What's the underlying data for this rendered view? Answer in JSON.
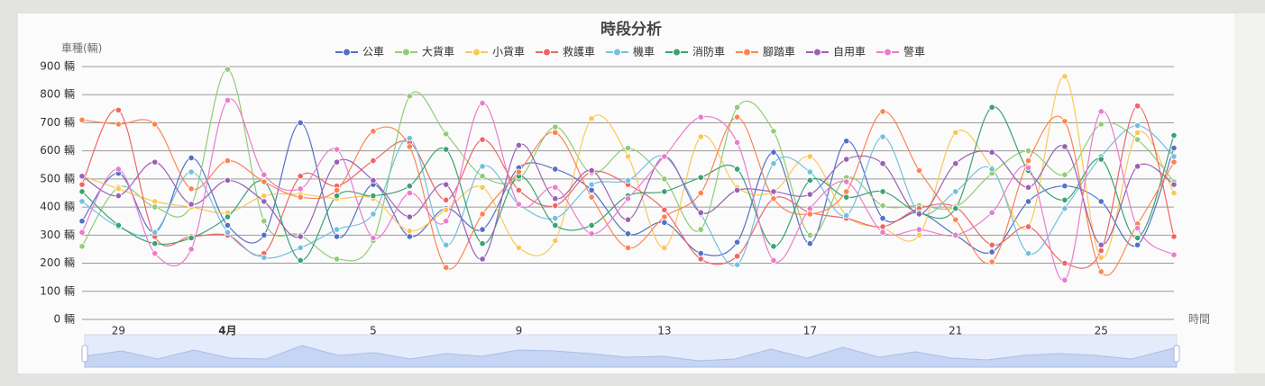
{
  "chart_data": {
    "type": "line",
    "title": "時段分析",
    "y_label": "車種(輛)",
    "x_label": "時間",
    "categories": [
      null,
      "29",
      null,
      null,
      "4月",
      null,
      null,
      null,
      "5",
      null,
      null,
      null,
      "9",
      null,
      null,
      null,
      "13",
      null,
      null,
      null,
      "17",
      null,
      null,
      null,
      "21",
      null,
      null,
      null,
      "25",
      null,
      null
    ],
    "ylim": [
      0,
      900
    ],
    "yticks": [
      {
        "value": 0,
        "label": "0 輛"
      },
      {
        "value": 100,
        "label": "100 輛"
      },
      {
        "value": 200,
        "label": "200 輛"
      },
      {
        "value": 300,
        "label": "300 輛"
      },
      {
        "value": 400,
        "label": "400 輛"
      },
      {
        "value": 500,
        "label": "500 輛"
      },
      {
        "value": 600,
        "label": "600 輛"
      },
      {
        "value": 700,
        "label": "700 輛"
      },
      {
        "value": 800,
        "label": "800 輛"
      },
      {
        "value": 900,
        "label": "900 輛"
      }
    ],
    "grid": true,
    "smooth": true,
    "legend": "top",
    "series": [
      {
        "name": "公車",
        "color": "#5470c6",
        "values": [
          350,
          520,
          310,
          575,
          335,
          300,
          700,
          295,
          480,
          295,
          395,
          320,
          540,
          535,
          460,
          305,
          345,
          235,
          275,
          595,
          270,
          635,
          360,
          380,
          300,
          240,
          420,
          475,
          420,
          265,
          610
        ]
      },
      {
        "name": "大貨車",
        "color": "#91cc75",
        "values": [
          260,
          470,
          400,
          405,
          890,
          350,
          300,
          215,
          280,
          795,
          660,
          510,
          500,
          685,
          520,
          610,
          500,
          320,
          755,
          670,
          300,
          505,
          405,
          405,
          400,
          520,
          600,
          515,
          695,
          640,
          490
        ]
      },
      {
        "name": "小貨車",
        "color": "#fac858",
        "values": [
          510,
          465,
          420,
          400,
          380,
          440,
          445,
          430,
          430,
          315,
          390,
          470,
          255,
          280,
          715,
          580,
          255,
          650,
          470,
          455,
          580,
          370,
          325,
          300,
          665,
          540,
          330,
          865,
          220,
          665,
          450
        ]
      },
      {
        "name": "救護車",
        "color": "#ee6666",
        "values": [
          480,
          745,
          295,
          295,
          300,
          235,
          510,
          475,
          565,
          630,
          425,
          640,
          460,
          405,
          525,
          480,
          390,
          215,
          225,
          430,
          380,
          360,
          330,
          395,
          400,
          265,
          330,
          200,
          245,
          760,
          295
        ]
      },
      {
        "name": "機車",
        "color": "#73c0de",
        "values": [
          420,
          330,
          310,
          525,
          310,
          220,
          255,
          320,
          375,
          645,
          265,
          545,
          410,
          360,
          480,
          495,
          580,
          375,
          195,
          555,
          525,
          370,
          650,
          380,
          455,
          535,
          235,
          395,
          580,
          690,
          580
        ]
      },
      {
        "name": "消防車",
        "color": "#3ba272",
        "values": [
          455,
          335,
          270,
          290,
          365,
          490,
          210,
          440,
          440,
          475,
          605,
          270,
          510,
          335,
          335,
          440,
          455,
          505,
          535,
          260,
          495,
          435,
          455,
          380,
          395,
          755,
          530,
          425,
          570,
          290,
          655
        ]
      },
      {
        "name": "腳踏車",
        "color": "#fc8452",
        "values": [
          710,
          695,
          695,
          465,
          565,
          490,
          435,
          460,
          670,
          615,
          185,
          375,
          525,
          665,
          435,
          255,
          365,
          450,
          720,
          430,
          375,
          455,
          740,
          530,
          355,
          205,
          565,
          705,
          170,
          340,
          560
        ]
      },
      {
        "name": "自用車",
        "color": "#9a60b4",
        "values": [
          510,
          440,
          560,
          410,
          495,
          420,
          295,
          560,
          495,
          365,
          480,
          215,
          620,
          430,
          530,
          355,
          580,
          380,
          460,
          455,
          445,
          570,
          555,
          375,
          555,
          595,
          470,
          615,
          265,
          545,
          480
        ]
      },
      {
        "name": "警車",
        "color": "#ea7ccc",
        "values": [
          310,
          535,
          235,
          250,
          780,
          515,
          465,
          605,
          290,
          450,
          350,
          770,
          410,
          470,
          305,
          430,
          580,
          720,
          630,
          210,
          395,
          490,
          310,
          320,
          300,
          380,
          540,
          140,
          740,
          325,
          230
        ]
      }
    ]
  }
}
